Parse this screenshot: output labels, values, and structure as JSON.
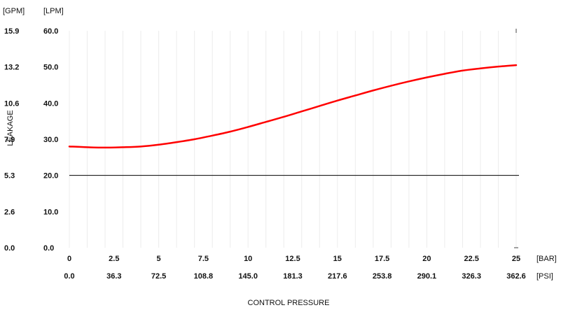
{
  "chart_data": {
    "type": "line",
    "y_unit_labels": [
      "[GPM]",
      "[LPM]"
    ],
    "ylabel": "LEAKAGE",
    "xlabel": "CONTROL PRESSURE",
    "x_unit_labels": [
      "[BAR]",
      "[PSI]"
    ],
    "ylim": [
      0,
      60
    ],
    "xlim": [
      0,
      25
    ],
    "y_ticks_lpm": [
      "0.0",
      "10.0",
      "20.0",
      "30.0",
      "40.0",
      "50.0",
      "60.0"
    ],
    "y_ticks_gpm": [
      "0.0",
      "2.6",
      "5.3",
      "7.9",
      "10.6",
      "13.2",
      "15.9"
    ],
    "x_ticks_bar": [
      "0",
      "2.5",
      "5",
      "7.5",
      "10",
      "12.5",
      "15",
      "17.5",
      "20",
      "22.5",
      "25"
    ],
    "x_ticks_psi": [
      "0.0",
      "36.3",
      "72.5",
      "108.8",
      "145.0",
      "181.3",
      "217.6",
      "253.8",
      "290.1",
      "326.3",
      "362.6"
    ],
    "reference_line": {
      "y": 20,
      "color": "#000000"
    },
    "series": [
      {
        "color": "#ff0000",
        "x": [
          0,
          1,
          2,
          3,
          4,
          5,
          6,
          7,
          8,
          9,
          10,
          11,
          12,
          13,
          14,
          15,
          16,
          17,
          18,
          19,
          20,
          21,
          22,
          23,
          24,
          25
        ],
        "y": [
          28.0,
          27.8,
          27.7,
          27.8,
          28.0,
          28.5,
          29.2,
          30.0,
          31.0,
          32.1,
          33.4,
          34.8,
          36.2,
          37.7,
          39.2,
          40.7,
          42.1,
          43.5,
          44.8,
          46.0,
          47.1,
          48.1,
          49.0,
          49.6,
          50.1,
          50.5
        ]
      }
    ],
    "grid": true
  }
}
